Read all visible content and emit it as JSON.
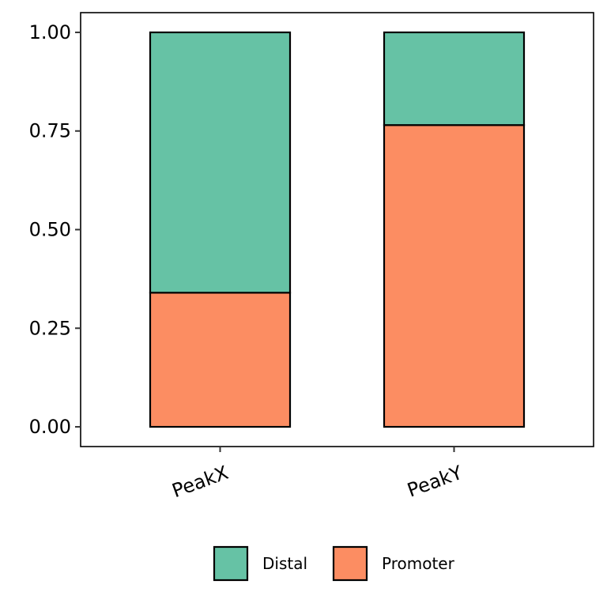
{
  "chart_data": {
    "type": "bar",
    "stacked": true,
    "normalized": true,
    "categories": [
      "PeakX",
      "PeakY"
    ],
    "series": [
      {
        "name": "Promoter",
        "values": [
          0.34,
          0.765
        ],
        "color": "#FC8D62"
      },
      {
        "name": "Distal",
        "values": [
          0.66,
          0.235
        ],
        "color": "#66C2A5"
      }
    ],
    "legend": {
      "position": "bottom",
      "entries": [
        {
          "label": "Distal",
          "color": "#66C2A5"
        },
        {
          "label": "Promoter",
          "color": "#FC8D62"
        }
      ]
    },
    "yticks": [
      "0.00",
      "0.25",
      "0.50",
      "0.75",
      "1.00"
    ],
    "ylim": [
      -0.05,
      1.05
    ],
    "grid": false,
    "title": "",
    "xlabel": "",
    "ylabel": ""
  }
}
